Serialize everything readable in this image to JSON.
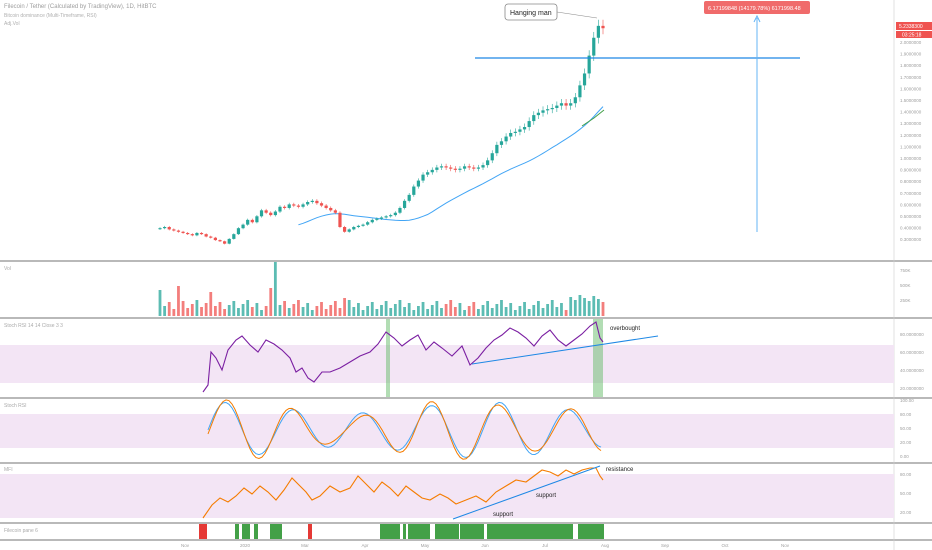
{
  "header": {
    "symbol_line": "Filecoin / Tether (Calculated by TradingView), 1D, HitBTC",
    "indicator_line_1": "Bitcoin dominance (Multi-Timeframe, RSI)",
    "indicator_line_2": "Adj.Vol"
  },
  "panes": {
    "volume": "Vol",
    "rsi": "Stoch RSI 14 14 Close 3 3",
    "stoch": "Stoch RSI",
    "mfi": "MFI",
    "colors": "Filecoin pane 6"
  },
  "annotations": {
    "hanging_man": "Hanging man",
    "measure": "6.17199848 (14179.78%) 6171998.48",
    "overbought": "overbought",
    "resistance": "resistance",
    "support_upper": "support",
    "support_lower": "support"
  },
  "price_axis": {
    "ticks": [
      "2.0000000",
      "1.9000000",
      "1.8000000",
      "1.7000000",
      "1.6000000",
      "1.5000000",
      "1.4000000",
      "1.3000000",
      "1.2000000",
      "1.1000000",
      "1.0000000",
      "0.9000000",
      "0.8000000",
      "0.7000000",
      "0.6000000",
      "0.5000000",
      "0.4000000",
      "0.3000000"
    ],
    "last_price": "5.2338300",
    "countdown": "03:25:18"
  },
  "volume_axis": {
    "ticks": [
      "750K",
      "500K",
      "250K"
    ]
  },
  "rsi_axis": {
    "ticks": [
      "80.0000000",
      "60.0000000",
      "40.0000000",
      "20.0000000"
    ]
  },
  "stoch_axis": {
    "ticks": [
      "100.00",
      "80.00",
      "50.00",
      "20.00",
      "0.00"
    ]
  },
  "mfi_axis": {
    "ticks": [
      "80.00",
      "50.00",
      "20.00"
    ]
  },
  "time_axis": {
    "labels": [
      "Nov",
      "2020",
      "Mar",
      "Apr",
      "May",
      "Jun",
      "Jul",
      "Aug",
      "Sep",
      "Oct",
      "Nov"
    ]
  },
  "colors": {
    "up": "#26a69a",
    "down": "#ef5350",
    "ma": "#42a5f5",
    "rsi": "#7b1fa2",
    "mfi": "#f57c00",
    "band": "#f3e5f5",
    "trend": "#1e88e5",
    "green": "#43a047",
    "red": "#e53935",
    "measure_bg": "#f06b6b"
  },
  "chart_data": {
    "type": "candlestick",
    "series": [
      {
        "name": "price",
        "values": [
          0.35,
          0.36,
          0.34,
          0.33,
          0.32,
          0.31,
          0.3,
          0.29,
          0.31,
          0.3,
          0.28,
          0.27,
          0.25,
          0.24,
          0.22,
          0.26,
          0.3,
          0.35,
          0.38,
          0.42,
          0.4,
          0.45,
          0.5,
          0.48,
          0.46,
          0.49,
          0.53,
          0.52,
          0.55,
          0.54,
          0.53,
          0.55,
          0.57,
          0.58,
          0.56,
          0.54,
          0.52,
          0.5,
          0.48,
          0.36,
          0.32,
          0.34,
          0.36,
          0.37,
          0.38,
          0.4,
          0.42,
          0.43,
          0.44,
          0.45,
          0.46,
          0.48,
          0.52,
          0.58,
          0.63,
          0.7,
          0.75,
          0.8,
          0.82,
          0.84,
          0.86,
          0.87,
          0.86,
          0.85,
          0.84,
          0.85,
          0.87,
          0.86,
          0.85,
          0.86,
          0.88,
          0.92,
          0.98,
          1.05,
          1.08,
          1.12,
          1.15,
          1.16,
          1.18,
          1.2,
          1.25,
          1.3,
          1.32,
          1.34,
          1.35,
          1.36,
          1.38,
          1.4,
          1.38,
          1.4,
          1.45,
          1.55,
          1.65,
          1.8,
          1.95,
          2.05,
          2.03
        ]
      }
    ]
  }
}
